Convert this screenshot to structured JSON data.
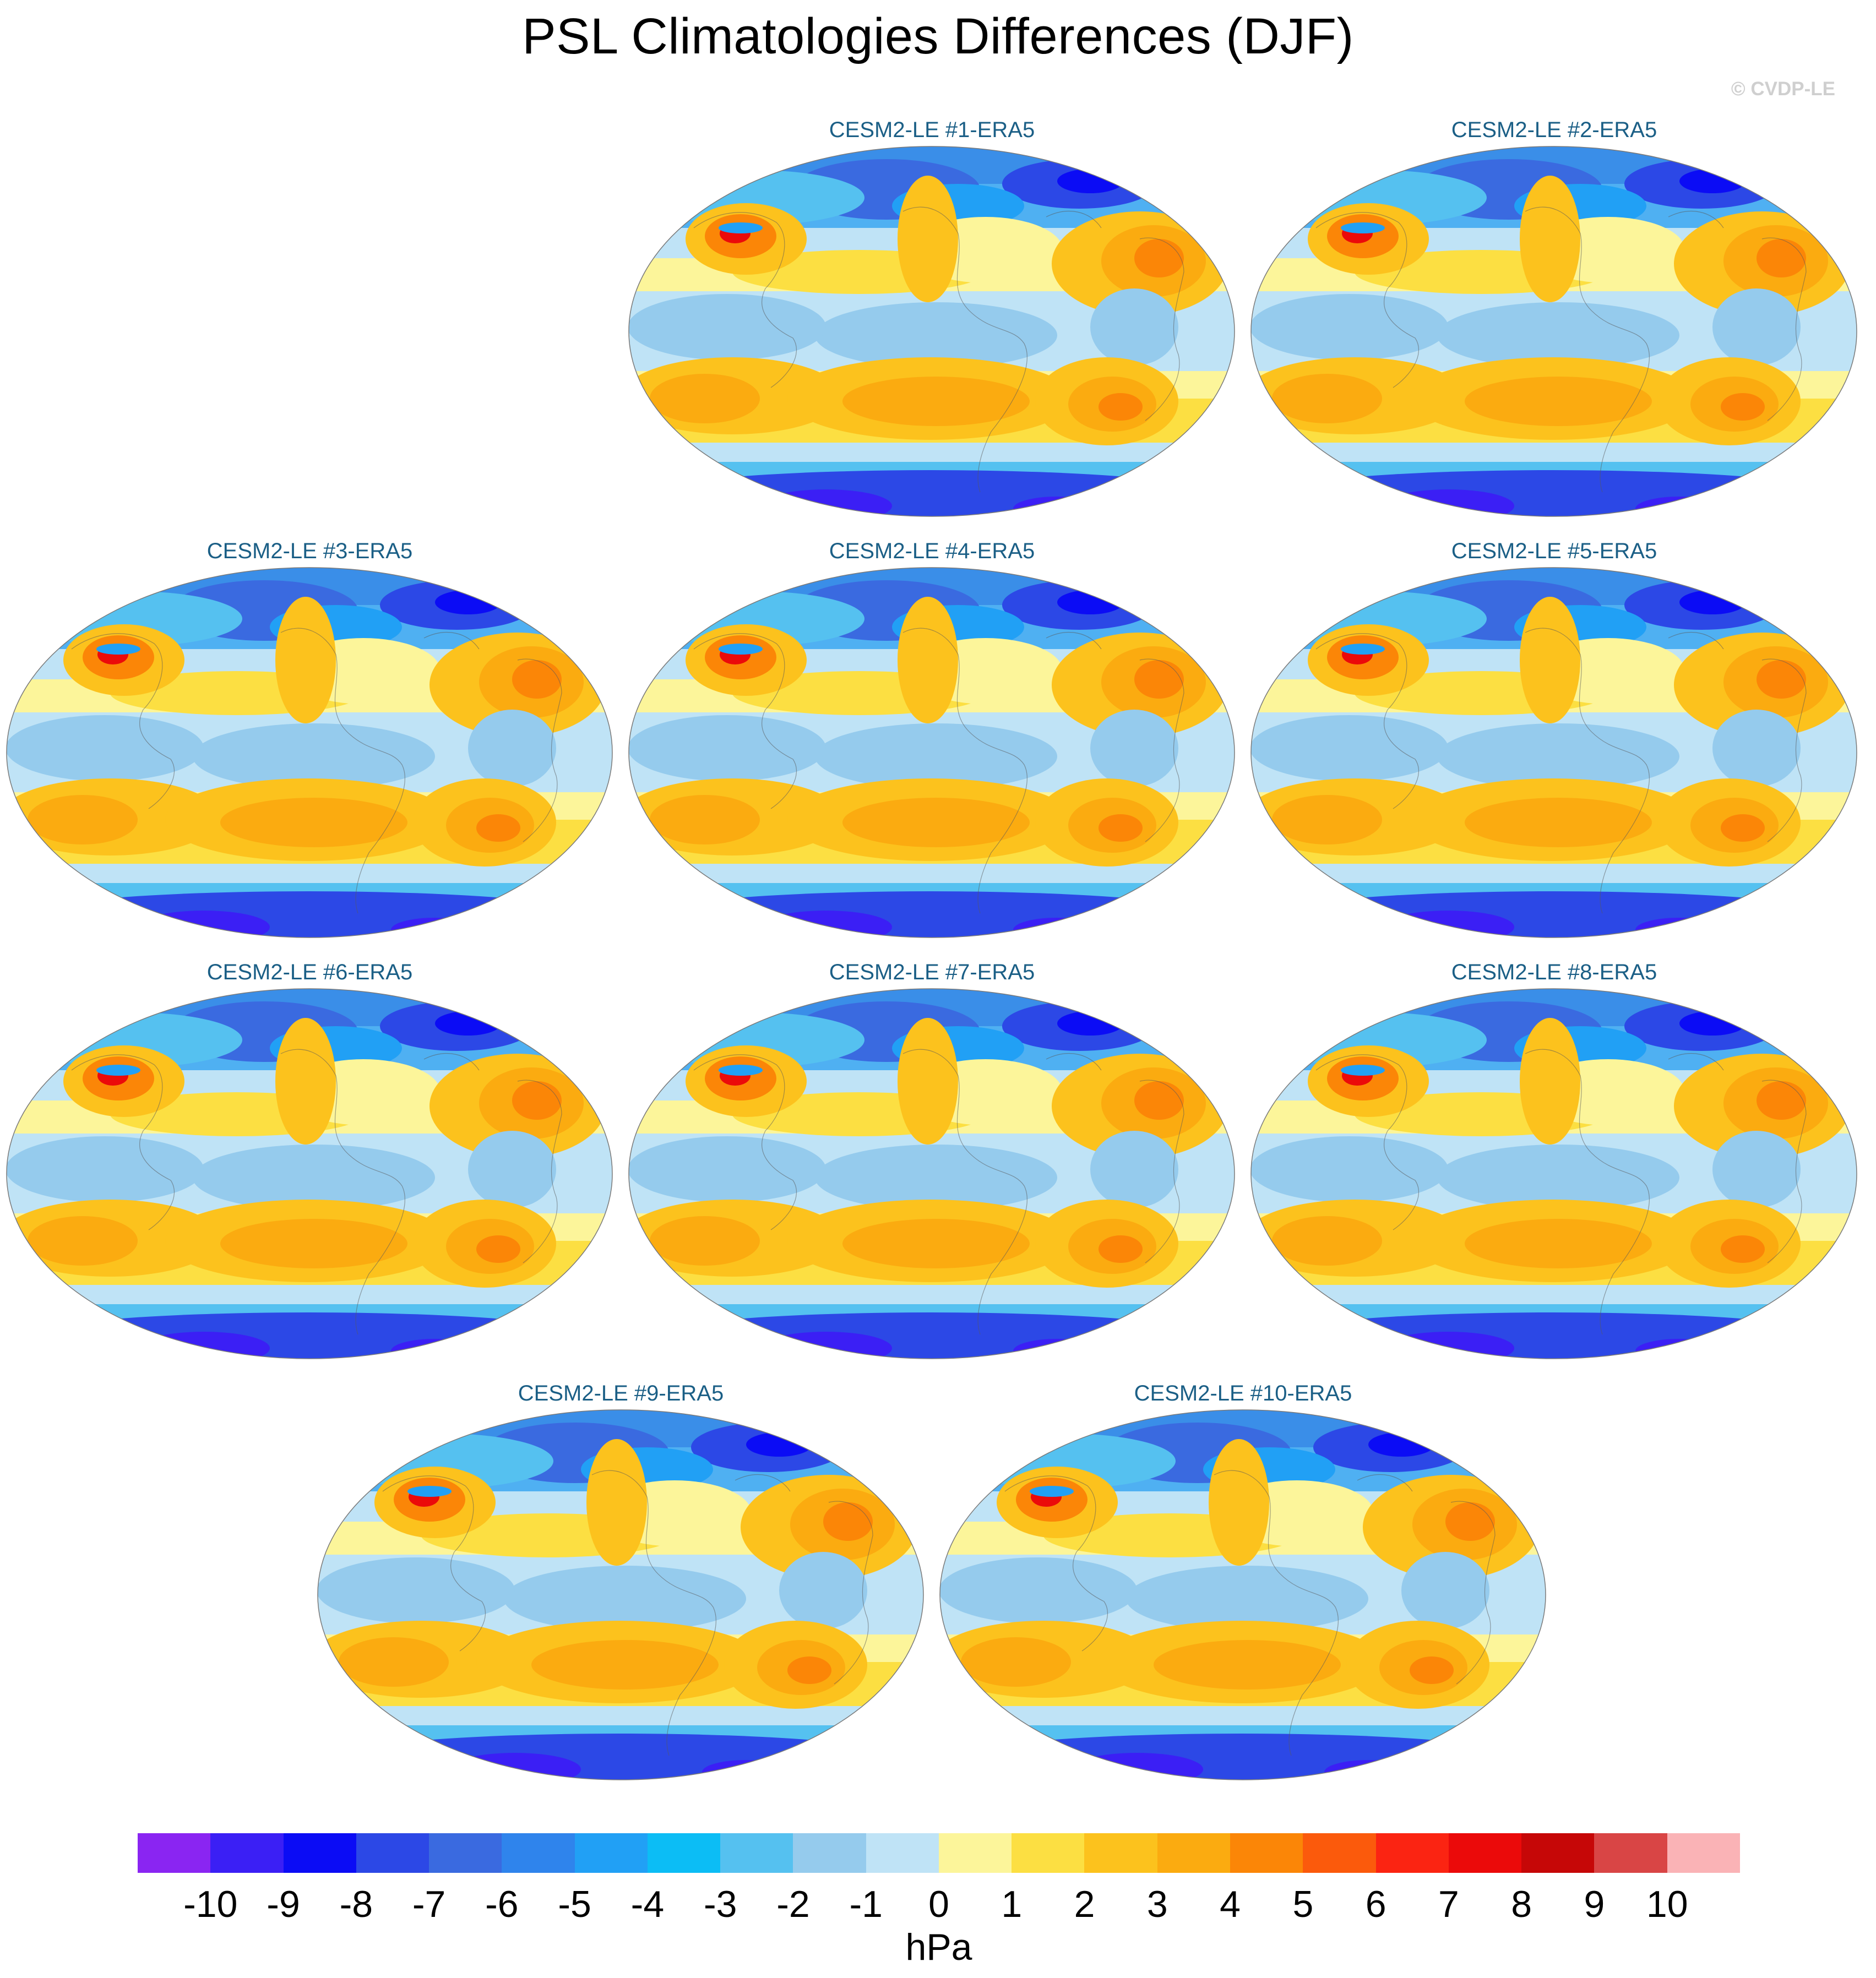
{
  "page": {
    "title": "PSL Climatologies Differences (DJF)",
    "credit": "© CVDP-LE"
  },
  "panels": [
    {
      "title": "CESM2-LE #1-ERA5"
    },
    {
      "title": "CESM2-LE #2-ERA5"
    },
    {
      "title": "CESM2-LE #3-ERA5"
    },
    {
      "title": "CESM2-LE #4-ERA5"
    },
    {
      "title": "CESM2-LE #5-ERA5"
    },
    {
      "title": "CESM2-LE #6-ERA5"
    },
    {
      "title": "CESM2-LE #7-ERA5"
    },
    {
      "title": "CESM2-LE #8-ERA5"
    },
    {
      "title": "CESM2-LE #9-ERA5"
    },
    {
      "title": "CESM2-LE #10-ERA5"
    }
  ],
  "colorbar": {
    "unit": "hPa",
    "labels": [
      "-10",
      "-9",
      "-8",
      "-7",
      "-6",
      "-5",
      "-4",
      "-3",
      "-2",
      "-1",
      "0",
      "1",
      "2",
      "3",
      "4",
      "5",
      "6",
      "7",
      "8",
      "9",
      "10"
    ],
    "colors": [
      "#8a25f2",
      "#3b1ff5",
      "#0b0cf5",
      "#2c48e6",
      "#3a6ae0",
      "#2f84ec",
      "#21a0f5",
      "#0cbdf5",
      "#55c1f0",
      "#95cbed",
      "#bfe3f6",
      "#fcf59a",
      "#fcdf42",
      "#fcc21d",
      "#fbab10",
      "#fb8607",
      "#fb5a0c",
      "#fb2412",
      "#eb0a0a",
      "#c60707",
      "#d94545",
      "#fab3b6"
    ]
  }
}
